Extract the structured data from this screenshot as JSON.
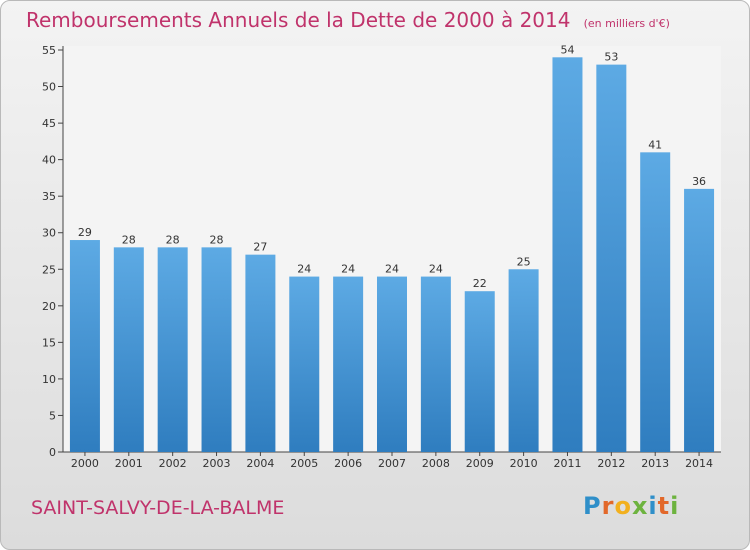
{
  "header": {
    "title": "Remboursements Annuels de la Dette de 2000 à 2014",
    "subtitle": "(en milliers d'€)"
  },
  "footer": {
    "commune": "SAINT-SALVY-DE-LA-BALME",
    "logo_letters": [
      "P",
      "r",
      "o",
      "x",
      "i",
      "t",
      "i"
    ]
  },
  "colors": {
    "title": "#c0336b",
    "bar_top": "#5daae4",
    "bar_bottom": "#2f7dbf"
  },
  "chart_data": {
    "type": "bar",
    "title": "Remboursements Annuels de la Dette de 2000 à 2014",
    "xlabel": "",
    "ylabel": "",
    "categories": [
      "2000",
      "2001",
      "2002",
      "2003",
      "2004",
      "2005",
      "2006",
      "2007",
      "2008",
      "2009",
      "2010",
      "2011",
      "2012",
      "2013",
      "2014"
    ],
    "values": [
      29,
      28,
      28,
      28,
      27,
      24,
      24,
      24,
      24,
      22,
      25,
      54,
      53,
      41,
      36
    ],
    "ylim": [
      0,
      55
    ],
    "yticks": [
      0,
      5,
      10,
      15,
      20,
      25,
      30,
      35,
      40,
      45,
      50,
      55
    ],
    "grid": false,
    "legend": "none"
  }
}
